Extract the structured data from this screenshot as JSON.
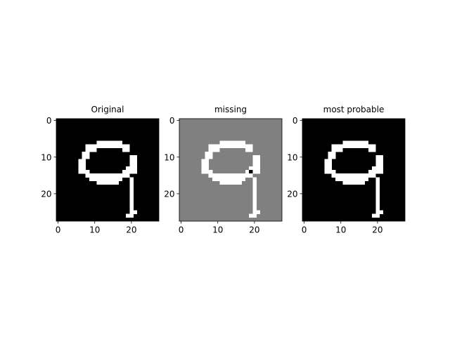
{
  "chart_data": [
    {
      "type": "heatmap",
      "title": "Original",
      "xlabel": "",
      "ylabel": "",
      "xlim": [
        -0.5,
        27.5
      ],
      "ylim": [
        27.5,
        -0.5
      ],
      "xticks": [
        0,
        10,
        20
      ],
      "yticks": [
        0,
        10,
        20
      ],
      "colormap": "gray",
      "background": "#000000",
      "foreground": "#ffffff",
      "missing": "#808080",
      "rows": [
        "............................",
        "............................",
        "............................",
        "............................",
        "............................",
        "............................",
        "...........#######..........",
        "........############........",
        "........###.......##........",
        ".......##...................",
        ".......##...........##......",
        "......##............##......",
        "......##............##......",
        "......##...........###......",
        "......###.........####......",
        "........############........",
        ".........#########..#.......",
        "...........######...#.......",
        "....................#.......",
        "....................#.......",
        "....................#.......",
        "....................#.......",
        "....................#.......",
        "....................#.......",
        "....................#.......",
        "....................##......",
        "...................##.......",
        "............................"
      ]
    },
    {
      "type": "heatmap",
      "title": "missing",
      "xlabel": "",
      "ylabel": "",
      "xlim": [
        -0.5,
        27.5
      ],
      "ylim": [
        27.5,
        -0.5
      ],
      "xticks": [
        0,
        10,
        20
      ],
      "yticks": [
        0,
        10,
        20
      ],
      "colormap": "gray",
      "background": "#808080",
      "foreground": "#ffffff",
      "missing": "#000000",
      "rows": [
        "............................",
        "............................",
        "............................",
        "............................",
        "............................",
        "............................",
        "...........#######..........",
        "........############........",
        "........###.......##........",
        ".......##...................",
        ".......##...........##......",
        "......##............##......",
        "......##............##......",
        "......##...........###......",
        "......###.........#m##......",
        "........############........",
        ".........#########..#.......",
        "...........######...#.......",
        "....................#.......",
        "....................#.......",
        "....................#.......",
        "....................#.......",
        "....................#.......",
        "....................#.......",
        "....................#.......",
        "....................##......",
        "...................##.......",
        "............................"
      ]
    },
    {
      "type": "heatmap",
      "title": "most probable",
      "xlabel": "",
      "ylabel": "",
      "xlim": [
        -0.5,
        27.5
      ],
      "ylim": [
        27.5,
        -0.5
      ],
      "xticks": [
        0,
        10,
        20
      ],
      "yticks": [
        0,
        10,
        20
      ],
      "colormap": "gray",
      "background": "#000000",
      "foreground": "#ffffff",
      "missing": "#808080",
      "rows": [
        "............................",
        "............................",
        "............................",
        "............................",
        "............................",
        "............................",
        "...........#######..........",
        "........############........",
        "........###.......##........",
        ".......##...................",
        ".......##...........##......",
        "......##............##......",
        "......##............##......",
        "......##...........###......",
        "......###.........####......",
        "........############........",
        ".........#########..#.......",
        "...........######...#.......",
        "....................#.......",
        "....................#.......",
        "....................#.......",
        "....................#.......",
        "....................#.......",
        "....................#.......",
        "....................#.......",
        "....................##......",
        "...................##.......",
        "............................"
      ]
    }
  ]
}
